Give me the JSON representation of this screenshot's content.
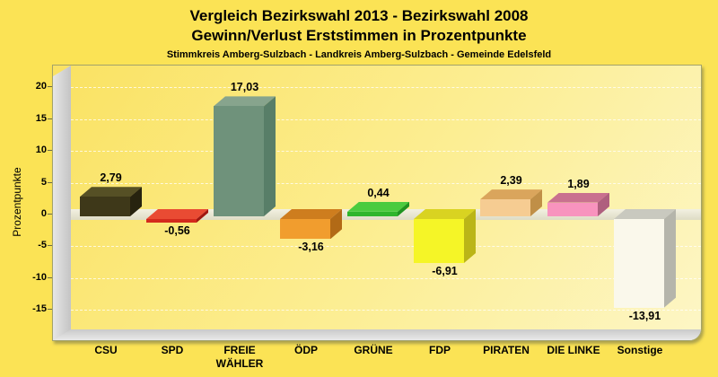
{
  "title": {
    "line1": "Vergleich Bezirkswahl 2013 - Bezirkswahl 2008",
    "line2": "Gewinn/Verlust Erststimmen in Prozentpunkte",
    "subtitle": "Stimmkreis Amberg-Sulzbach - Landkreis Amberg-Sulzbach - Gemeinde Edelsfeld"
  },
  "chart_data": {
    "type": "bar",
    "style": "3d-bars",
    "title": "Vergleich Bezirkswahl 2013 - Bezirkswahl 2008 / Gewinn/Verlust Erststimmen in Prozentpunkte",
    "subtitle": "Stimmkreis Amberg-Sulzbach - Landkreis Amberg-Sulzbach - Gemeinde Edelsfeld",
    "categories": [
      "CSU",
      "SPD",
      "FREIE WÄHLER",
      "ÖDP",
      "GRÜNE",
      "FDP",
      "PIRATEN",
      "DIE LINKE",
      "Sonstige"
    ],
    "values": [
      2.79,
      -0.56,
      17.03,
      -3.16,
      0.44,
      -6.91,
      2.39,
      1.89,
      -13.91
    ],
    "value_labels": [
      "2,79",
      "-0,56",
      "17,03",
      "-3,16",
      "0,44",
      "-6,91",
      "2,39",
      "1,89",
      "-13,91"
    ],
    "xlabel": "",
    "ylabel": "Prozentpunkte",
    "yticks": [
      20,
      15,
      10,
      5,
      0,
      -5,
      -10,
      -15
    ],
    "ylim": [
      -21,
      23.5
    ],
    "grid": "horizontal-dashed",
    "legend": "none",
    "background_color": "#FBE355",
    "bar_styles": [
      {
        "front": "#3E3819",
        "top": "#565025",
        "side": "#27230F"
      },
      {
        "front": "#D42A1C",
        "top": "#E94B33",
        "side": "#A01710"
      },
      {
        "front": "#6F927B",
        "top": "#87A48D",
        "side": "#587E68"
      },
      {
        "front": "#F19D2E",
        "top": "#CE7D1E",
        "side": "#B26A16"
      },
      {
        "front": "#2EB52B",
        "top": "#4BCB3F",
        "side": "#1F9420"
      },
      {
        "front": "#F5F527",
        "top": "#D9D321",
        "side": "#BBB517"
      },
      {
        "front": "#F6CC92",
        "top": "#DAA55C",
        "side": "#C08F47"
      },
      {
        "front": "#F893BE",
        "top": "#C9708F",
        "side": "#AF5F7E"
      },
      {
        "front": "#FAF8EB",
        "top": "#C9C9BF",
        "side": "#B5B5AB"
      }
    ]
  }
}
